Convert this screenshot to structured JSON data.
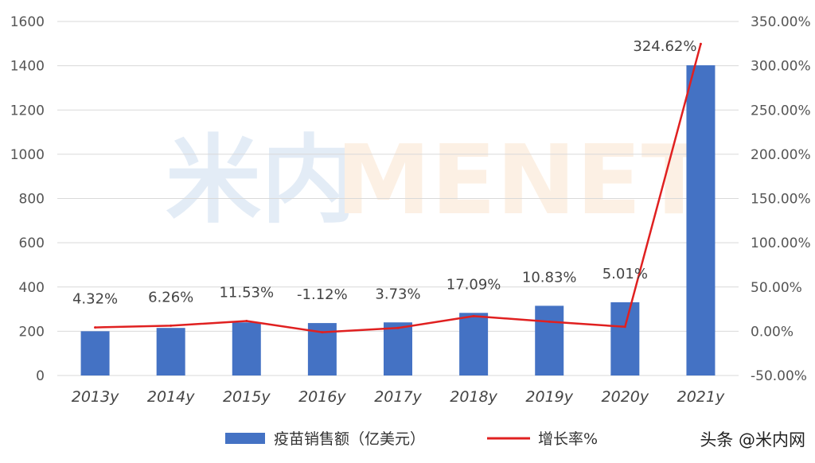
{
  "watermark": {
    "prefix": "米内",
    "suffix": "MENET"
  },
  "credit": "头条 @米内网",
  "colors": {
    "bar": "#4472C4",
    "line": "#E02020",
    "grid": "#D9D9D9"
  },
  "chart_data": {
    "type": "bar",
    "categories": [
      "2013y",
      "2014y",
      "2015y",
      "2016y",
      "2017y",
      "2018y",
      "2019y",
      "2020y",
      "2021y"
    ],
    "series": [
      {
        "name": "疫苗销售额（亿美元）",
        "type": "bar",
        "axis": "left",
        "values": [
          200,
          215,
          240,
          237,
          240,
          283,
          315,
          331,
          1402
        ]
      },
      {
        "name": "增长率%",
        "type": "line",
        "axis": "right",
        "values": [
          4.32,
          6.26,
          11.53,
          -1.12,
          3.73,
          17.09,
          10.83,
          5.01,
          324.62
        ],
        "labels": [
          "4.32%",
          "6.26%",
          "11.53%",
          "-1.12%",
          "3.73%",
          "17.09%",
          "10.83%",
          "5.01%",
          "324.62%"
        ]
      }
    ],
    "y_left": {
      "lim": [
        0,
        1600
      ],
      "ticks": [
        "0",
        "200",
        "400",
        "600",
        "800",
        "1000",
        "1200",
        "1400",
        "1600"
      ]
    },
    "y_right": {
      "lim": [
        -50,
        350
      ],
      "ticks": [
        "-50.00%",
        "0.00%",
        "50.00%",
        "100.00%",
        "150.00%",
        "200.00%",
        "250.00%",
        "300.00%",
        "350.00%"
      ]
    },
    "grid": true,
    "legend_position": "bottom"
  }
}
